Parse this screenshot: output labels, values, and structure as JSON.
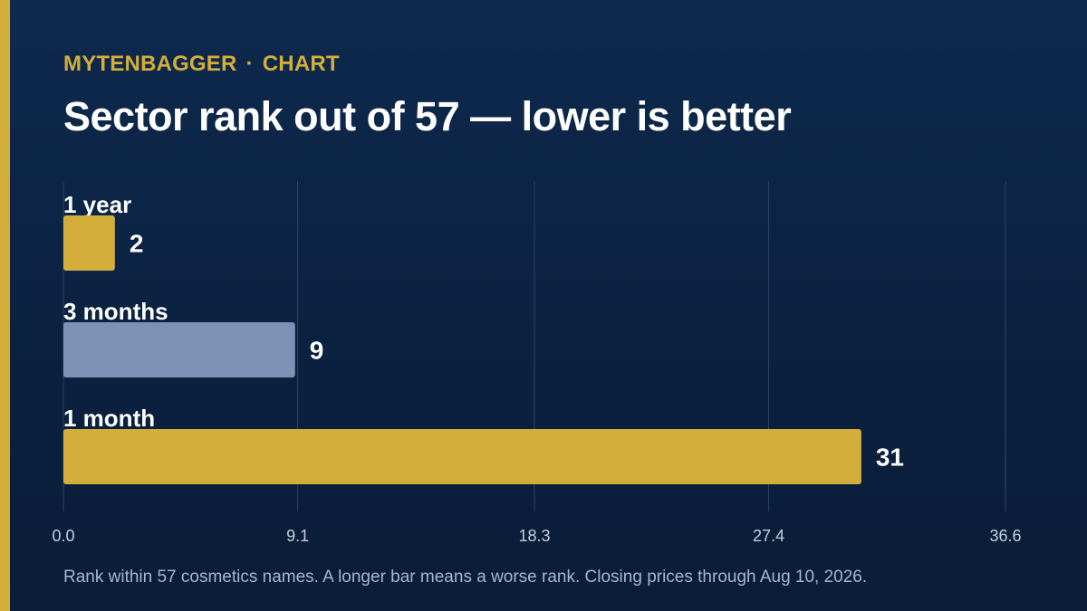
{
  "colors": {
    "background": "#0b2140",
    "accent": "#d4ae3a",
    "bar_secondary": "#7b92b4",
    "text": "#ffffff",
    "tick_text": "#c4cfe0",
    "footnote_text": "#a9b6cb",
    "grid": "#2c4465"
  },
  "header": {
    "brand": "MYTENBAGGER",
    "separator": "·",
    "section": "CHART"
  },
  "chart_data": {
    "type": "bar",
    "orientation": "horizontal",
    "title": "Sector rank out of 57 — lower is better",
    "categories": [
      "1 year",
      "3 months",
      "1 month"
    ],
    "values": [
      2,
      9,
      31
    ],
    "bar_colors": [
      "#d4ae3a",
      "#7b92b4",
      "#d4ae3a"
    ],
    "xlim": [
      0,
      36.6
    ],
    "x_ticks": [
      "0.0",
      "9.1",
      "18.3",
      "27.4",
      "36.6"
    ],
    "xlabel": "",
    "ylabel": "",
    "grid": true,
    "legend": "none"
  },
  "footnote": "Rank within 57 cosmetics names. A longer bar means a worse rank. Closing prices through Aug 10, 2026."
}
